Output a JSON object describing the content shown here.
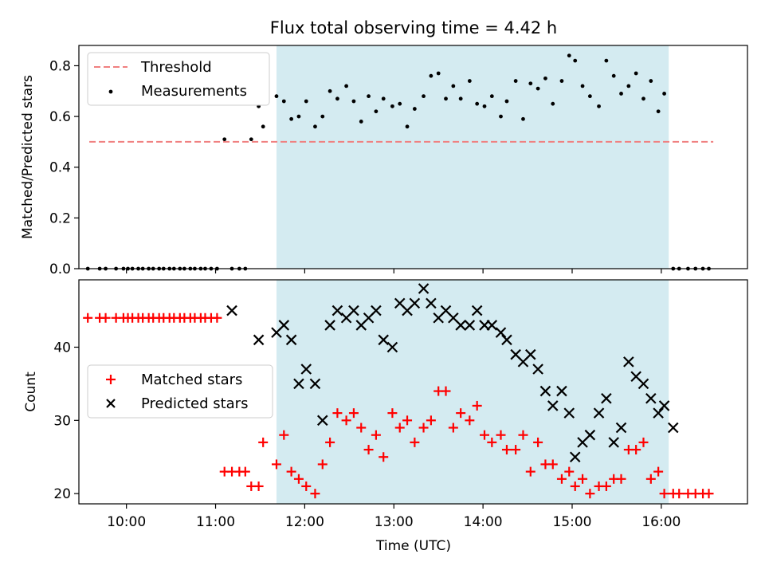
{
  "chart_data": [
    {
      "type": "scatter",
      "title": "Flux total observing time = 4.42 h",
      "ylabel": "Matched/Predicted stars",
      "xlim": [
        "09:28",
        "16:58"
      ],
      "ylim": [
        0,
        0.88
      ],
      "yticks": [
        "0.0",
        "0.2",
        "0.4",
        "0.6",
        "0.8"
      ],
      "ytick_values": [
        0,
        0.2,
        0.4,
        0.6,
        0.8
      ],
      "shaded_span": {
        "x": [
          "11:41",
          "16:05"
        ],
        "color": "#d4ebf1"
      },
      "threshold": {
        "name": "Threshold",
        "y": 0.5,
        "x": [
          "09:35",
          "16:35"
        ],
        "color": "#f08080"
      },
      "legend": {
        "placement": "upper-left",
        "entries": [
          "Threshold",
          "Measurements"
        ]
      },
      "series": [
        {
          "name": "Measurements",
          "color": "#000000",
          "marker": "dot",
          "x": [
            "09:34",
            "09:42",
            "09:46",
            "09:53",
            "09:58",
            "10:01",
            "10:04",
            "10:08",
            "10:11",
            "10:15",
            "10:18",
            "10:22",
            "10:25",
            "10:29",
            "10:32",
            "10:36",
            "10:39",
            "10:43",
            "10:46",
            "10:50",
            "10:53",
            "10:57",
            "11:01",
            "11:06",
            "11:11",
            "11:16",
            "11:20",
            "11:24",
            "11:29",
            "11:32",
            "11:41",
            "11:46",
            "11:51",
            "11:56",
            "12:01",
            "12:07",
            "12:12",
            "12:17",
            "12:22",
            "12:28",
            "12:33",
            "12:38",
            "12:43",
            "12:48",
            "12:53",
            "12:59",
            "13:04",
            "13:09",
            "13:14",
            "13:20",
            "13:25",
            "13:30",
            "13:35",
            "13:40",
            "13:45",
            "13:51",
            "13:56",
            "14:01",
            "14:06",
            "14:12",
            "14:16",
            "14:22",
            "14:27",
            "14:32",
            "14:37",
            "14:42",
            "14:47",
            "14:53",
            "14:58",
            "15:02",
            "15:07",
            "15:12",
            "15:18",
            "15:23",
            "15:28",
            "15:33",
            "15:38",
            "15:43",
            "15:48",
            "15:53",
            "15:58",
            "16:02",
            "16:08",
            "16:12",
            "16:18",
            "16:23",
            "16:28",
            "16:32"
          ],
          "y": [
            0,
            0,
            0,
            0,
            0,
            0,
            0,
            0,
            0,
            0,
            0,
            0,
            0,
            0,
            0,
            0,
            0,
            0,
            0,
            0,
            0,
            0,
            0,
            0.51,
            0,
            0,
            0,
            0.51,
            0.64,
            0.56,
            0.68,
            0.66,
            0.59,
            0.6,
            0.66,
            0.56,
            0.6,
            0.7,
            0.67,
            0.72,
            0.66,
            0.58,
            0.68,
            0.62,
            0.67,
            0.64,
            0.65,
            0.56,
            0.63,
            0.68,
            0.76,
            0.77,
            0.67,
            0.72,
            0.67,
            0.74,
            0.65,
            0.64,
            0.68,
            0.6,
            0.66,
            0.74,
            0.59,
            0.73,
            0.71,
            0.75,
            0.65,
            0.74,
            0.84,
            0.82,
            0.72,
            0.68,
            0.64,
            0.82,
            0.76,
            0.69,
            0.72,
            0.77,
            0.67,
            0.74,
            0.62,
            0.69,
            0,
            0,
            0,
            0,
            0,
            0
          ]
        }
      ]
    },
    {
      "type": "scatter",
      "xlabel": "Time (UTC)",
      "ylabel": "Count",
      "xlim": [
        "09:28",
        "16:58"
      ],
      "ylim": [
        18.6,
        49.2
      ],
      "xticks": [
        "10:00",
        "11:00",
        "12:00",
        "13:00",
        "14:00",
        "15:00",
        "16:00"
      ],
      "yticks": [
        "20",
        "30",
        "40"
      ],
      "ytick_values": [
        20,
        30,
        40
      ],
      "shaded_span": {
        "x": [
          "11:41",
          "16:05"
        ],
        "color": "#d4ebf1"
      },
      "legend": {
        "placement": "center-left",
        "entries": [
          "Matched stars",
          "Predicted stars"
        ]
      },
      "series": [
        {
          "name": "Matched stars",
          "color": "#ff0000",
          "marker": "plus",
          "x": [
            "09:34",
            "09:42",
            "09:46",
            "09:53",
            "09:58",
            "10:01",
            "10:04",
            "10:08",
            "10:11",
            "10:15",
            "10:18",
            "10:22",
            "10:25",
            "10:29",
            "10:32",
            "10:36",
            "10:39",
            "10:43",
            "10:46",
            "10:50",
            "10:53",
            "10:57",
            "11:01",
            "11:06",
            "11:11",
            "11:16",
            "11:20",
            "11:24",
            "11:29",
            "11:32",
            "11:41",
            "11:46",
            "11:51",
            "11:56",
            "12:01",
            "12:07",
            "12:12",
            "12:17",
            "12:22",
            "12:28",
            "12:33",
            "12:38",
            "12:43",
            "12:48",
            "12:53",
            "12:59",
            "13:04",
            "13:09",
            "13:14",
            "13:20",
            "13:25",
            "13:30",
            "13:35",
            "13:40",
            "13:45",
            "13:51",
            "13:56",
            "14:01",
            "14:06",
            "14:12",
            "14:16",
            "14:22",
            "14:27",
            "14:32",
            "14:37",
            "14:42",
            "14:47",
            "14:53",
            "14:58",
            "15:02",
            "15:07",
            "15:12",
            "15:18",
            "15:23",
            "15:28",
            "15:33",
            "15:38",
            "15:43",
            "15:48",
            "15:53",
            "15:58",
            "16:02",
            "16:08",
            "16:12",
            "16:18",
            "16:23",
            "16:28",
            "16:32"
          ],
          "y": [
            44,
            44,
            44,
            44,
            44,
            44,
            44,
            44,
            44,
            44,
            44,
            44,
            44,
            44,
            44,
            44,
            44,
            44,
            44,
            44,
            44,
            44,
            44,
            23,
            23,
            23,
            23,
            21,
            21,
            27,
            24,
            28,
            23,
            22,
            21,
            20,
            24,
            27,
            31,
            30,
            31,
            29,
            26,
            28,
            25,
            31,
            29,
            30,
            27,
            29,
            30,
            34,
            34,
            29,
            31,
            30,
            32,
            28,
            27,
            28,
            26,
            26,
            28,
            23,
            27,
            24,
            24,
            22,
            23,
            21,
            22,
            20,
            21,
            21,
            22,
            22,
            26,
            26,
            27,
            22,
            23,
            20,
            20,
            20,
            20,
            20,
            20,
            20
          ]
        },
        {
          "name": "Predicted stars",
          "color": "#000000",
          "marker": "x",
          "x": [
            "11:11",
            "11:29",
            "11:41",
            "11:46",
            "11:51",
            "11:56",
            "12:01",
            "12:07",
            "12:12",
            "12:17",
            "12:22",
            "12:28",
            "12:33",
            "12:38",
            "12:43",
            "12:48",
            "12:53",
            "12:59",
            "13:04",
            "13:09",
            "13:14",
            "13:20",
            "13:25",
            "13:30",
            "13:35",
            "13:40",
            "13:45",
            "13:51",
            "13:56",
            "14:01",
            "14:06",
            "14:12",
            "14:16",
            "14:22",
            "14:27",
            "14:32",
            "14:37",
            "14:42",
            "14:47",
            "14:53",
            "14:58",
            "15:02",
            "15:07",
            "15:12",
            "15:18",
            "15:23",
            "15:28",
            "15:33",
            "15:38",
            "15:43",
            "15:48",
            "15:53",
            "15:58",
            "16:02",
            "16:08"
          ],
          "y": [
            45,
            41,
            42,
            43,
            41,
            35,
            37,
            35,
            30,
            43,
            45,
            44,
            45,
            43,
            44,
            45,
            41,
            40,
            46,
            45,
            46,
            48,
            46,
            44,
            45,
            44,
            43,
            43,
            45,
            43,
            43,
            42,
            41,
            39,
            38,
            39,
            37,
            34,
            32,
            34,
            31,
            25,
            27,
            28,
            31,
            33,
            27,
            29,
            38,
            36,
            35,
            33,
            31,
            32,
            29
          ]
        }
      ]
    }
  ]
}
